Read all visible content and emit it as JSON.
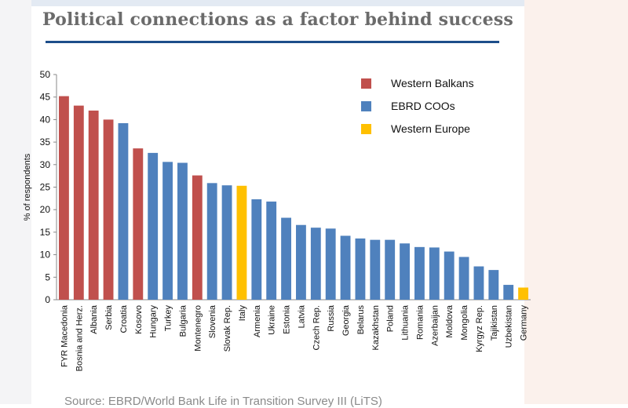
{
  "chart_data": {
    "type": "bar",
    "title": "Political connections as a factor behind success",
    "xlabel": "",
    "ylabel": "% of respondents",
    "ylim": [
      0,
      50
    ],
    "yticks": [
      0,
      5,
      10,
      15,
      20,
      25,
      30,
      35,
      40,
      45,
      50
    ],
    "grid": false,
    "legend_position": "top-right",
    "legend": [
      {
        "name": "Western Balkans",
        "color": "#c0504d"
      },
      {
        "name": "EBRD COOs",
        "color": "#4f81bd"
      },
      {
        "name": "Western Europe",
        "color": "#ffc000"
      }
    ],
    "categories": [
      "FYR Macedonia",
      "Bosnia and Herz.",
      "Albania",
      "Serbia",
      "Croatia",
      "Kosovo",
      "Hungary",
      "Turkey",
      "Bulgaria",
      "Montenegro",
      "Slovenia",
      "Slovak Rep.",
      "Italy",
      "Armenia",
      "Ukraine",
      "Estonia",
      "Latvia",
      "Czech Rep.",
      "Russia",
      "Georgia",
      "Belarus",
      "Kazakhstan",
      "Poland",
      "Lithuania",
      "Romania",
      "Azerbaijan",
      "Moldova",
      "Mongolia",
      "Kyrgyz Rep.",
      "Tajikistan",
      "Uzbekistan",
      "Germany"
    ],
    "values": [
      45.2,
      43.1,
      42.0,
      40.0,
      39.2,
      33.6,
      32.6,
      30.6,
      30.4,
      27.6,
      25.9,
      25.4,
      25.3,
      22.3,
      21.8,
      18.2,
      16.6,
      16.0,
      15.8,
      14.2,
      13.6,
      13.3,
      13.3,
      12.5,
      11.7,
      11.6,
      10.7,
      9.5,
      7.4,
      6.6,
      3.3,
      2.7
    ],
    "groups": [
      "Western Balkans",
      "Western Balkans",
      "Western Balkans",
      "Western Balkans",
      "EBRD COOs",
      "Western Balkans",
      "EBRD COOs",
      "EBRD COOs",
      "EBRD COOs",
      "Western Balkans",
      "EBRD COOs",
      "EBRD COOs",
      "Western Europe",
      "EBRD COOs",
      "EBRD COOs",
      "EBRD COOs",
      "EBRD COOs",
      "EBRD COOs",
      "EBRD COOs",
      "EBRD COOs",
      "EBRD COOs",
      "EBRD COOs",
      "EBRD COOs",
      "EBRD COOs",
      "EBRD COOs",
      "EBRD COOs",
      "EBRD COOs",
      "EBRD COOs",
      "EBRD COOs",
      "EBRD COOs",
      "EBRD COOs",
      "Western Europe"
    ]
  },
  "source_text": "Source: EBRD/World Bank Life in Transition Survey III (LiTS)"
}
